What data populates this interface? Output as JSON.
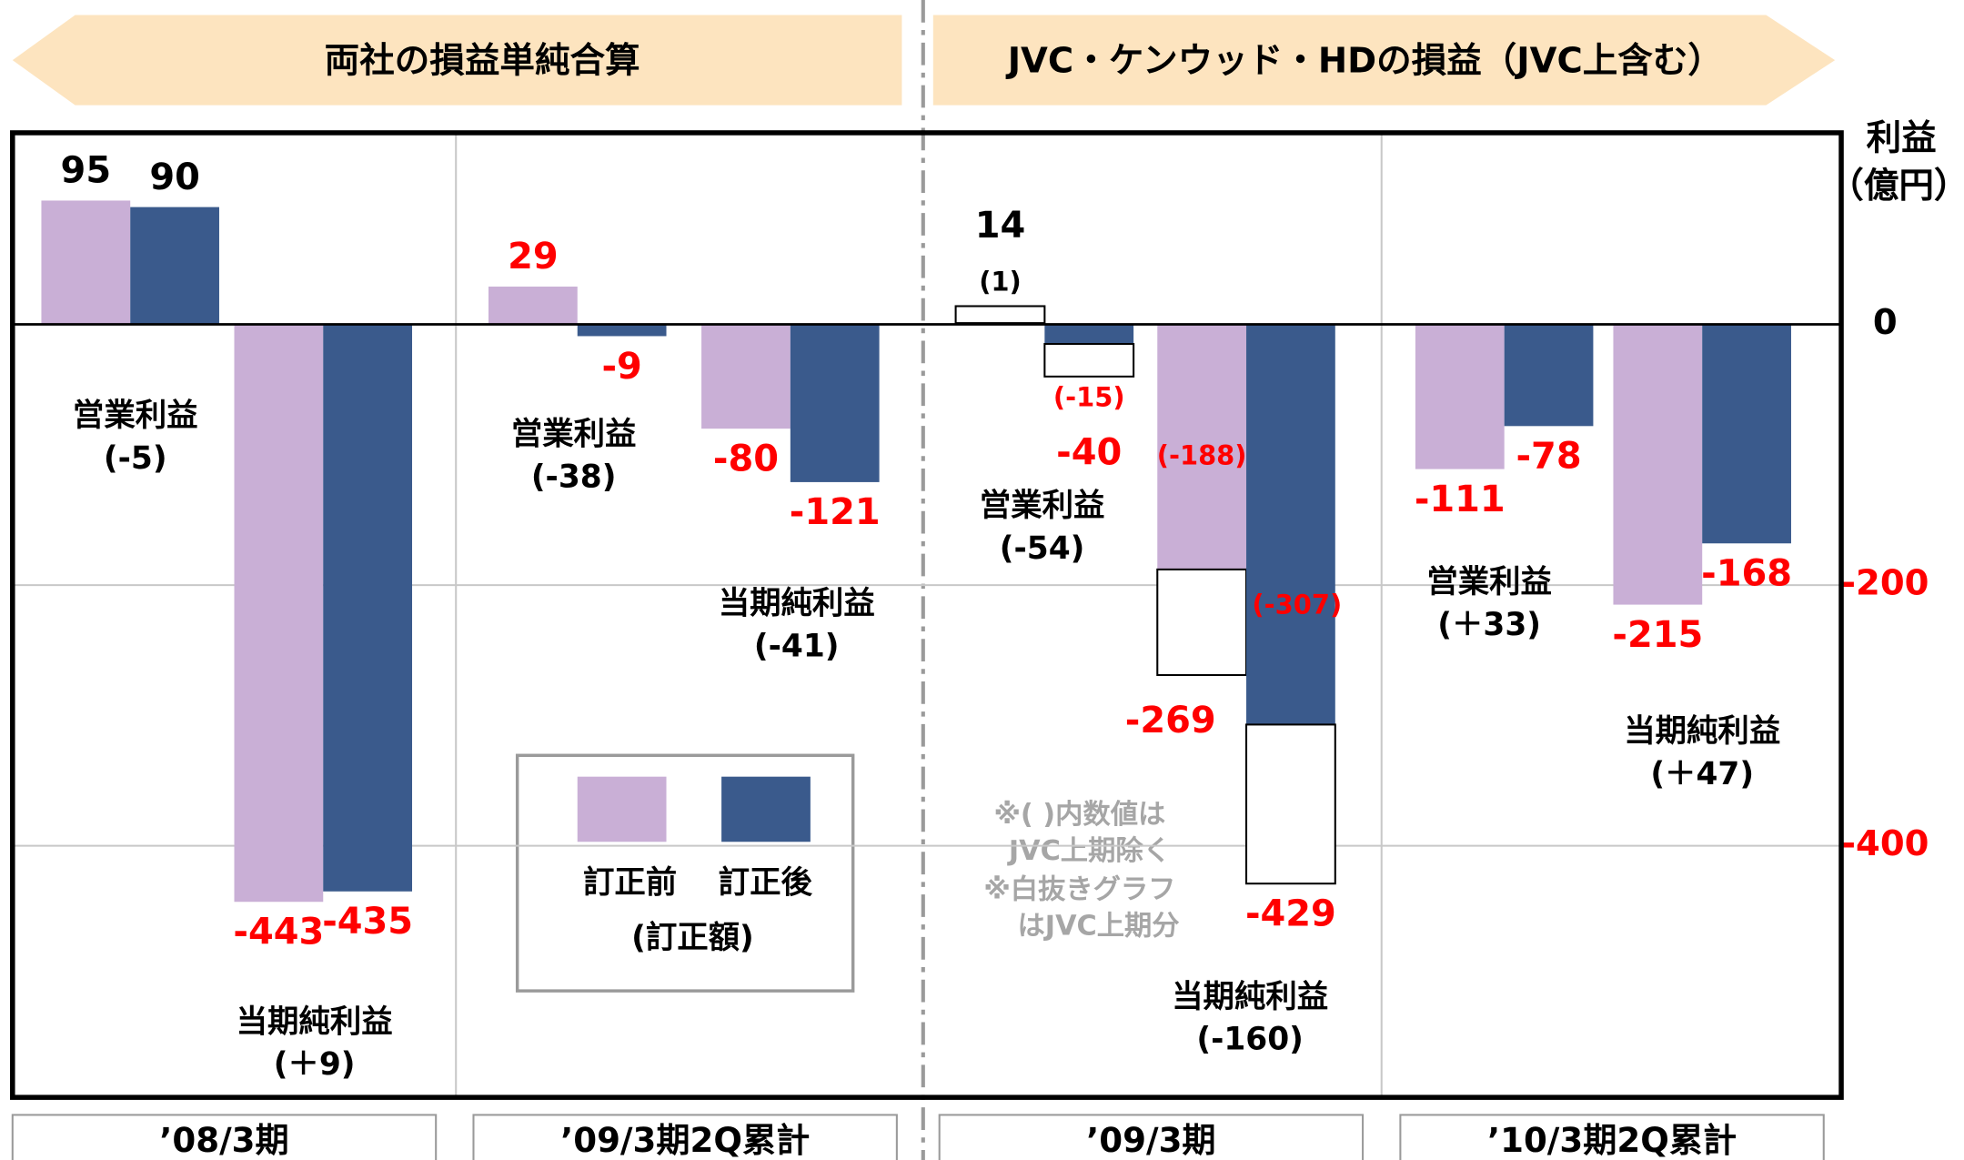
{
  "chart_data": {
    "type": "bar",
    "headers": [
      "両社の損益単純合算",
      "JVC・ケンウッド・HDの損益（JVC上含む）"
    ],
    "y_label": [
      "利益",
      "（億円）"
    ],
    "periods": [
      "’08/3期",
      "’09/3期2Q累計",
      "’09/3期",
      "’10/3期2Q累計"
    ],
    "metrics": [
      "営業利益",
      "当期純利益"
    ],
    "diff_labels": [
      "(-5)",
      "(＋9)",
      "(-38)",
      "(-41)",
      "(-54)",
      "(-160)",
      "(＋33)",
      "(＋47)"
    ],
    "series": [
      {
        "name": "訂正前",
        "color": "#c9afd6",
        "values": [
          95,
          -443,
          29,
          -80,
          14,
          -269,
          -111,
          -215
        ],
        "label_colors": [
          "#000000",
          "#ff0000",
          "#ff0000",
          "#ff0000",
          "#000000",
          "#ff0000",
          "#ff0000",
          "#ff0000"
        ],
        "excl_values": [
          null,
          null,
          null,
          null,
          1,
          -188,
          null,
          null
        ],
        "excl_labels": [
          null,
          null,
          null,
          null,
          "(1)",
          "(-188)",
          null,
          null
        ],
        "excl_label_colors": [
          null,
          null,
          null,
          null,
          "#000000",
          "#ff0000",
          null,
          null
        ]
      },
      {
        "name": "訂正後",
        "color": "#3a5a8c",
        "values": [
          90,
          -435,
          -9,
          -121,
          -40,
          -429,
          -78,
          -168
        ],
        "label_colors": [
          "#000000",
          "#ff0000",
          "#ff0000",
          "#ff0000",
          "#ff0000",
          "#ff0000",
          "#ff0000",
          "#ff0000"
        ],
        "excl_values": [
          null,
          null,
          null,
          null,
          -15,
          -307,
          null,
          null
        ],
        "excl_labels": [
          null,
          null,
          null,
          null,
          "(-15)",
          "(-307)",
          null,
          null
        ],
        "excl_label_colors": [
          null,
          null,
          null,
          null,
          "#ff0000",
          "#ff0000",
          null,
          null
        ]
      }
    ],
    "legend_title": "(訂正額)",
    "notes": [
      "※( )内数値は",
      "JVC上期除く",
      "※白抜きグラフ",
      "はJVC上期分"
    ],
    "ylim": [
      -593,
      147
    ],
    "yticks": [
      0,
      -200,
      -400
    ],
    "grid": true
  }
}
